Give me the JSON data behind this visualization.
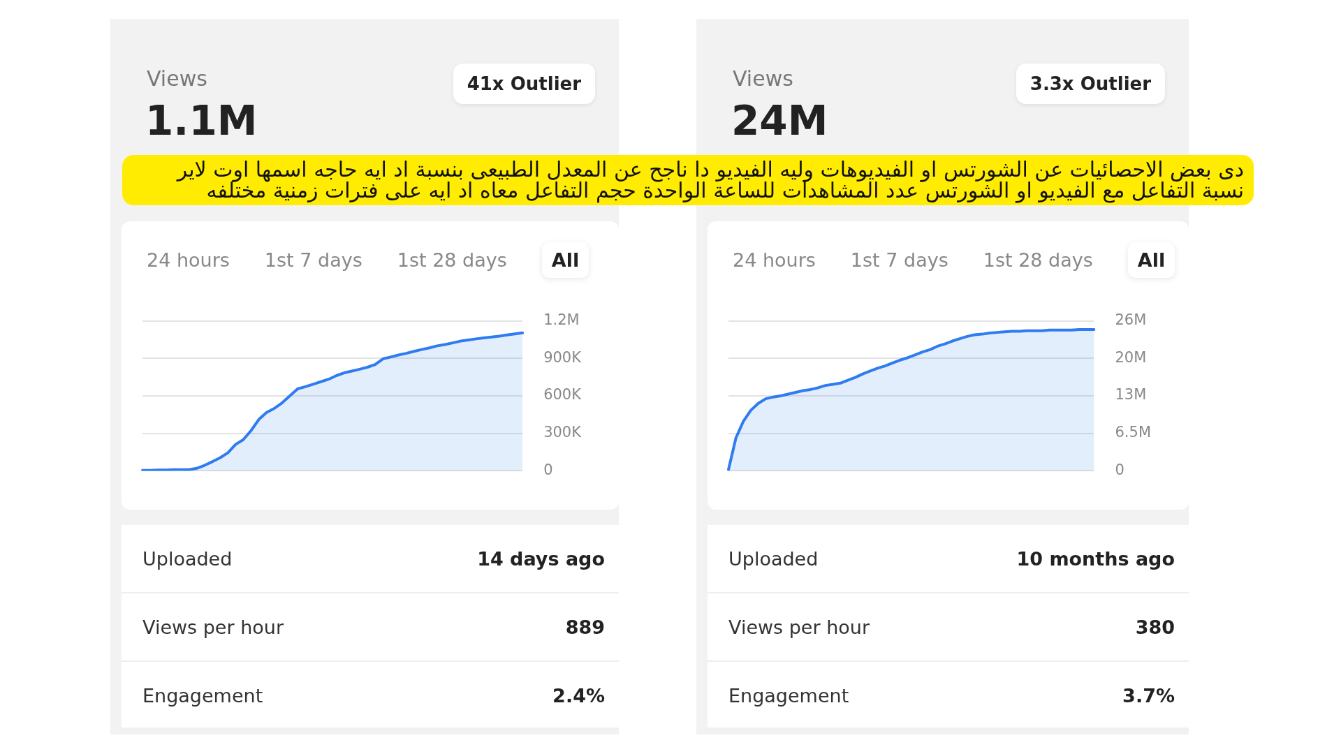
{
  "chart_data": [
    {
      "type": "area",
      "title": "Views",
      "subtitle": "1.1M",
      "categories": [
        null,
        null,
        null,
        null,
        null,
        null,
        null,
        null,
        null,
        null,
        null,
        null,
        null,
        null,
        null,
        null,
        null,
        null,
        null,
        null,
        null,
        null,
        null,
        null,
        null,
        null,
        null,
        null,
        null,
        null,
        null,
        null,
        null,
        null,
        null,
        null,
        null,
        null,
        null,
        null,
        null,
        null,
        null,
        null,
        null,
        null,
        null,
        null,
        null,
        null
      ],
      "series": [
        {
          "color": "#2f7cf0",
          "values": [
            4000,
            4000,
            6000,
            6000,
            9000,
            9000,
            9000,
            20000,
            44000,
            73000,
            104000,
            144000,
            211000,
            249000,
            322000,
            411000,
            467000,
            500000,
            544000,
            600000,
            656000,
            673000,
            693000,
            713000,
            733000,
            762000,
            784000,
            798000,
            813000,
            829000,
            851000,
            896000,
            911000,
            927000,
            940000,
            956000,
            971000,
            984000,
            1000000,
            1011000,
            1024000,
            1038000,
            1047000,
            1056000,
            1064000,
            1071000,
            1078000,
            1087000,
            1096000,
            1104000
          ]
        }
      ],
      "ylim": [
        0,
        1200000
      ],
      "yticks": [
        0,
        {
          "value": 300000,
          "label": "300K"
        },
        {
          "value": 600000,
          "label": "600K"
        },
        {
          "value": 900000,
          "label": "900K"
        },
        {
          "value": 1200000,
          "label": "1.2M"
        }
      ],
      "grid": "y",
      "tick_labels": "y",
      "annotations": [
        "41x Outlier",
        "24 hours",
        "1st 7 days",
        "1st 28 days",
        "All",
        "Uploaded",
        "14 days ago",
        "Views per hour",
        "889",
        "Engagement",
        "2.4%"
      ]
    },
    {
      "type": "area",
      "title": "Views",
      "subtitle": "24M",
      "categories": [
        null,
        null,
        null,
        null,
        null,
        null,
        null,
        null,
        null,
        null,
        null,
        null,
        null,
        null,
        null,
        null,
        null,
        null,
        null,
        null,
        null,
        null,
        null,
        null,
        null,
        null,
        null,
        null,
        null,
        null,
        null,
        null,
        null,
        null,
        null,
        null,
        null,
        null,
        null,
        null,
        null,
        null,
        null,
        null,
        null,
        null,
        null,
        null,
        null,
        null
      ],
      "series": [
        {
          "color": "#2f7cf0",
          "values": [
            200000,
            5700000,
            8600000,
            10500000,
            11700000,
            12500000,
            12800000,
            13000000,
            13300000,
            13600000,
            13900000,
            14100000,
            14400000,
            14800000,
            15000000,
            15200000,
            15700000,
            16200000,
            16800000,
            17300000,
            17800000,
            18200000,
            18700000,
            19200000,
            19600000,
            20100000,
            20600000,
            21000000,
            21600000,
            22000000,
            22500000,
            22900000,
            23300000,
            23600000,
            23700000,
            23900000,
            24000000,
            24100000,
            24200000,
            24200000,
            24300000,
            24300000,
            24300000,
            24400000,
            24400000,
            24400000,
            24400000,
            24500000,
            24500000,
            24500000
          ]
        }
      ],
      "ylim": [
        0,
        26000000
      ],
      "yticks": [
        0,
        {
          "value": 6500000,
          "label": "6.5M"
        },
        {
          "value": 13000000,
          "label": "13M"
        },
        {
          "value": 19500000,
          "label": "20M"
        },
        {
          "value": 26000000,
          "label": "26M"
        }
      ],
      "grid": "y",
      "tick_labels": "y",
      "annotations": [
        "3.3x Outlier",
        "24 hours",
        "1st 7 days",
        "1st 28 days",
        "All",
        "Uploaded",
        "10 months ago",
        "Views per hour",
        "380",
        "Engagement",
        "3.7%"
      ]
    },
    {
      "type": "other",
      "annotations": [
        "دى بعض الاحصائيات عن الشورتس او الفيديوهات وليه الفيديو دا ناجح عن المعدل الطبيعى بنسبة اد ايه حاجه اسمها اوت لاير  نسبة التفاعل مع الفيديو او الشورتس عدد المشاهدات للساعة الواحدة حجم التفاعل معاه اد ايه على فترات زمنية مختلفه"
      ]
    }
  ]
}
